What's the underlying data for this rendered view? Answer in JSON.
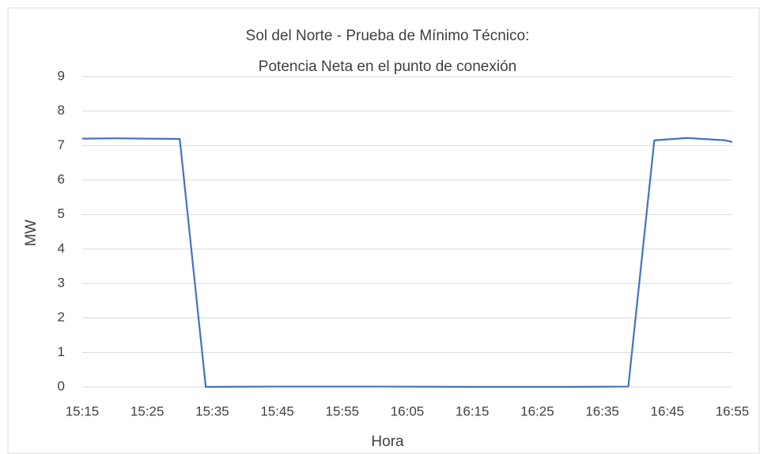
{
  "chart_data": {
    "type": "line",
    "title": [
      "Sol del Norte - Prueba de Mínimo Técnico:",
      "Potencia Neta en el punto de conexión"
    ],
    "x_label": "Hora",
    "y_label": "MW",
    "x": [
      "15:15",
      "15:20",
      "15:25",
      "15:30",
      "15:34",
      "15:45",
      "16:00",
      "16:15",
      "16:30",
      "16:39",
      "16:43",
      "16:48",
      "16:54",
      "16:55"
    ],
    "series": [
      {
        "name": "MW",
        "color": "#4472c4",
        "values": [
          7.2,
          7.21,
          7.2,
          7.19,
          0,
          0.01,
          0.01,
          0,
          0,
          0.01,
          7.15,
          7.22,
          7.15,
          7.1
        ]
      }
    ],
    "xlim": [
      "15:15",
      "16:55"
    ],
    "xticks": [
      "15:15",
      "15:25",
      "15:35",
      "15:45",
      "15:55",
      "16:05",
      "16:15",
      "16:25",
      "16:35",
      "16:45",
      "16:55"
    ],
    "ylim": [
      0,
      9
    ],
    "yticks": [
      0,
      1,
      2,
      3,
      4,
      5,
      6,
      7,
      8,
      9
    ],
    "grid": true
  }
}
